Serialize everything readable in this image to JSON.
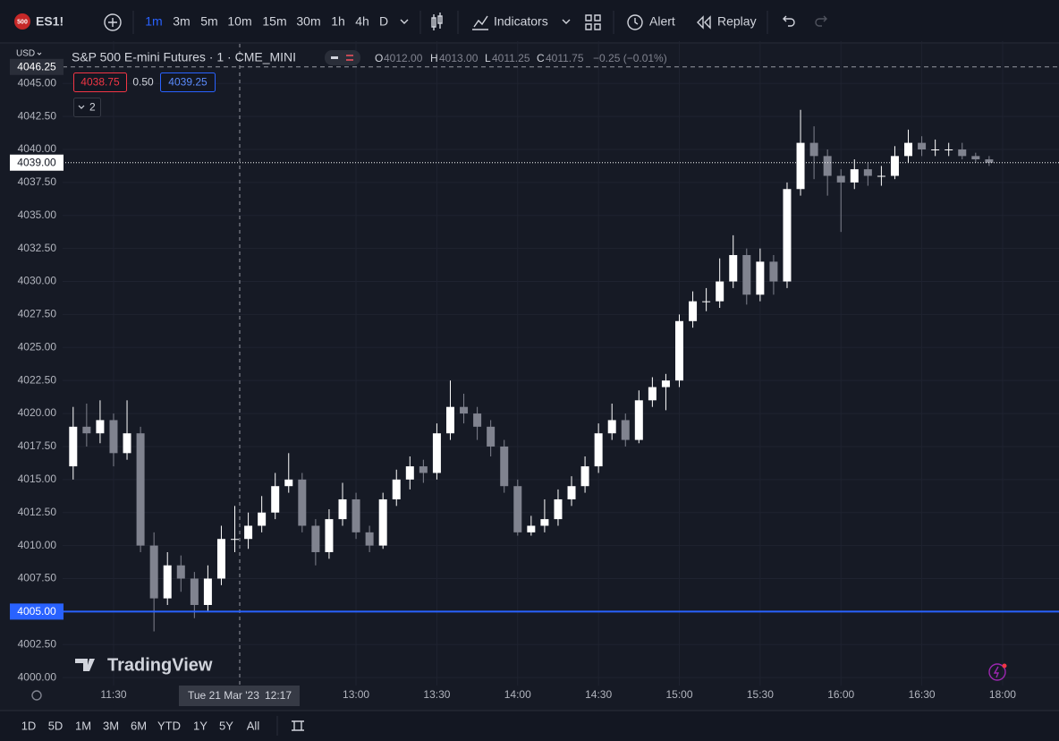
{
  "toolbar": {
    "symbol_badge": "500",
    "symbol": "ES1!",
    "intervals": [
      "1m",
      "3m",
      "5m",
      "10m",
      "15m",
      "30m",
      "1h",
      "4h",
      "D"
    ],
    "indicators": "Indicators",
    "alert": "Alert",
    "replay": "Replay"
  },
  "legend": {
    "title": "S&P 500 E-mini Futures · 1 · CME_MINI",
    "o_label": "O",
    "o": "4012.00",
    "h_label": "H",
    "h": "4013.00",
    "l_label": "L",
    "l": "4011.25",
    "c_label": "C",
    "c": "4011.75",
    "change": "−0.25 (−0.01%)",
    "bid": "4038.75",
    "spread": "0.50",
    "ask": "4039.25",
    "collapsed_count": "2"
  },
  "currency": "USD",
  "watermark": "TradingView",
  "crosshair": {
    "date": "Tue 21 Mar '23",
    "time": "12:17"
  },
  "chart_data": {
    "type": "candlestick",
    "up_color": "#ffffff",
    "down_color": "#80838f",
    "x": [
      "11:15",
      "11:20",
      "11:25",
      "11:30",
      "11:35",
      "11:40",
      "11:45",
      "11:50",
      "11:55",
      "12:00",
      "12:05",
      "12:10",
      "12:15",
      "12:20",
      "12:25",
      "12:30",
      "12:35",
      "12:40",
      "12:45",
      "12:50",
      "12:55",
      "13:00",
      "13:05",
      "13:10",
      "13:15",
      "13:20",
      "13:25",
      "13:30",
      "13:35",
      "13:40",
      "13:45",
      "13:50",
      "13:55",
      "14:00",
      "14:05",
      "14:10",
      "14:15",
      "14:20",
      "14:25",
      "14:30",
      "14:35",
      "14:40",
      "14:45",
      "14:50",
      "14:55",
      "15:00",
      "15:05",
      "15:10",
      "15:15",
      "15:20",
      "15:25",
      "15:30",
      "15:35",
      "15:40",
      "15:45",
      "15:50",
      "15:55",
      "16:00",
      "16:05",
      "16:10",
      "16:15",
      "16:20",
      "16:25",
      "16:30",
      "16:35",
      "16:40",
      "16:45",
      "16:50",
      "16:55"
    ],
    "candles": [
      [
        4016,
        4020.5,
        4015,
        4019
      ],
      [
        4019,
        4020.75,
        4017.5,
        4018.5
      ],
      [
        4018.5,
        4021,
        4017.75,
        4019.5
      ],
      [
        4019.5,
        4020,
        4016,
        4017
      ],
      [
        4017,
        4021,
        4016.5,
        4018.5
      ],
      [
        4018.5,
        4019,
        4009.5,
        4010
      ],
      [
        4010,
        4011,
        4003.5,
        4006
      ],
      [
        4006,
        4009.5,
        4005.5,
        4008.5
      ],
      [
        4008.5,
        4009.25,
        4006.5,
        4007.5
      ],
      [
        4007.5,
        4008,
        4004.5,
        4005.5
      ],
      [
        4005.5,
        4008.5,
        4005,
        4007.5
      ],
      [
        4007.5,
        4011.5,
        4007,
        4010.5
      ],
      [
        4010.5,
        4013,
        4009.5,
        4010.5
      ],
      [
        4010.5,
        4012.5,
        4009.75,
        4011.5
      ],
      [
        4011.5,
        4013.75,
        4011,
        4012.5
      ],
      [
        4012.5,
        4015.5,
        4012,
        4014.5
      ],
      [
        4014.5,
        4017,
        4014,
        4015
      ],
      [
        4015,
        4015.5,
        4011,
        4011.5
      ],
      [
        4011.5,
        4012,
        4008.5,
        4009.5
      ],
      [
        4009.5,
        4012.75,
        4009,
        4012
      ],
      [
        4012,
        4014.75,
        4011.5,
        4013.5
      ],
      [
        4013.5,
        4014,
        4010.5,
        4011
      ],
      [
        4011,
        4011.5,
        4009.5,
        4010
      ],
      [
        4010,
        4014,
        4009.75,
        4013.5
      ],
      [
        4013.5,
        4015.75,
        4013,
        4015
      ],
      [
        4015,
        4016.75,
        4014.25,
        4016
      ],
      [
        4016,
        4016.5,
        4014.75,
        4015.5
      ],
      [
        4015.5,
        4019.25,
        4015,
        4018.5
      ],
      [
        4018.5,
        4022.5,
        4018,
        4020.5
      ],
      [
        4020.5,
        4021.5,
        4019.25,
        4020
      ],
      [
        4020,
        4020.5,
        4018,
        4019
      ],
      [
        4019,
        4019.5,
        4016.75,
        4017.5
      ],
      [
        4017.5,
        4018,
        4014,
        4014.5
      ],
      [
        4014.5,
        4015,
        4010.75,
        4011
      ],
      [
        4011,
        4012.25,
        4010.75,
        4011.5
      ],
      [
        4011.5,
        4013.5,
        4011,
        4012
      ],
      [
        4012,
        4014.25,
        4011.5,
        4013.5
      ],
      [
        4013.5,
        4015.25,
        4013,
        4014.5
      ],
      [
        4014.5,
        4016.75,
        4014,
        4016
      ],
      [
        4016,
        4019.25,
        4015.5,
        4018.5
      ],
      [
        4018.5,
        4020.75,
        4018,
        4019.5
      ],
      [
        4019.5,
        4020,
        4017.5,
        4018
      ],
      [
        4018,
        4021.75,
        4017.75,
        4021
      ],
      [
        4021,
        4022.75,
        4020.5,
        4022
      ],
      [
        4022,
        4023,
        4020.25,
        4022.5
      ],
      [
        4022.5,
        4027.5,
        4022,
        4027
      ],
      [
        4027,
        4029.25,
        4026.5,
        4028.5
      ],
      [
        4028.5,
        4029.5,
        4027.75,
        4028.5
      ],
      [
        4028.5,
        4031.75,
        4028,
        4030
      ],
      [
        4030,
        4033.5,
        4029.5,
        4032
      ],
      [
        4032,
        4032.5,
        4028.25,
        4029
      ],
      [
        4029,
        4032.5,
        4028.5,
        4031.5
      ],
      [
        4031.5,
        4032,
        4029,
        4030
      ],
      [
        4030,
        4037.5,
        4029.5,
        4037
      ],
      [
        4037,
        4043,
        4036.5,
        4040.5
      ],
      [
        4040.5,
        4041.75,
        4037.75,
        4039.5
      ],
      [
        4039.5,
        4040,
        4036.5,
        4038
      ],
      [
        4038,
        4038.5,
        4033.75,
        4037.5
      ],
      [
        4037.5,
        4039.25,
        4037,
        4038.5
      ],
      [
        4038.5,
        4039,
        4037.25,
        4038
      ],
      [
        4038,
        4038.75,
        4037.25,
        4038
      ],
      [
        4038,
        4040.25,
        4037.75,
        4039.5
      ],
      [
        4039.5,
        4041.5,
        4039,
        4040.5
      ],
      [
        4040.5,
        4041,
        4039.5,
        4040
      ],
      [
        4040,
        4040.75,
        4039.5,
        4040
      ],
      [
        4040,
        4040.5,
        4039.5,
        4040
      ],
      [
        4040,
        4040.5,
        4039.25,
        4039.5
      ],
      [
        4039.5,
        4039.75,
        4039,
        4039.25
      ],
      [
        4039.25,
        4039.5,
        4038.75,
        4039
      ]
    ],
    "ylim": [
      3999.4,
      4048.2
    ],
    "yticks": [
      {
        "value": 4000,
        "label": "4000.00"
      },
      {
        "value": 4002.5,
        "label": "4002.50"
      },
      {
        "value": 4005,
        "label": "4005.00"
      },
      {
        "value": 4007.5,
        "label": "4007.50"
      },
      {
        "value": 4010,
        "label": "4010.00"
      },
      {
        "value": 4012.5,
        "label": "4012.50"
      },
      {
        "value": 4015,
        "label": "4015.00"
      },
      {
        "value": 4017.5,
        "label": "4017.50"
      },
      {
        "value": 4020,
        "label": "4020.00"
      },
      {
        "value": 4022.5,
        "label": "4022.50"
      },
      {
        "value": 4025,
        "label": "4025.00"
      },
      {
        "value": 4027.5,
        "label": "4027.50"
      },
      {
        "value": 4030,
        "label": "4030.00"
      },
      {
        "value": 4032.5,
        "label": "4032.50"
      },
      {
        "value": 4035,
        "label": "4035.00"
      },
      {
        "value": 4037.5,
        "label": "4037.50"
      },
      {
        "value": 4040,
        "label": "4040.00"
      },
      {
        "value": 4042.5,
        "label": "4042.50"
      },
      {
        "value": 4045,
        "label": "4045.00"
      }
    ],
    "xticks": [
      "11:30",
      "13:00",
      "13:30",
      "14:00",
      "14:30",
      "15:00",
      "15:30",
      "16:00",
      "16:30",
      "18:00"
    ],
    "grid": true,
    "price_lines": [
      {
        "value": 4046.25,
        "label": "4046.25",
        "color": "#9598a1",
        "style": "dashed"
      },
      {
        "value": 4039,
        "label": "4039.00",
        "color": "#ffffff",
        "style": "dotted"
      },
      {
        "value": 4005,
        "label": "4005.00",
        "color": "#2962ff",
        "style": "solid"
      }
    ]
  },
  "bottom_bar": {
    "ranges": [
      "1D",
      "5D",
      "1M",
      "3M",
      "6M",
      "YTD",
      "1Y",
      "5Y",
      "All"
    ]
  }
}
